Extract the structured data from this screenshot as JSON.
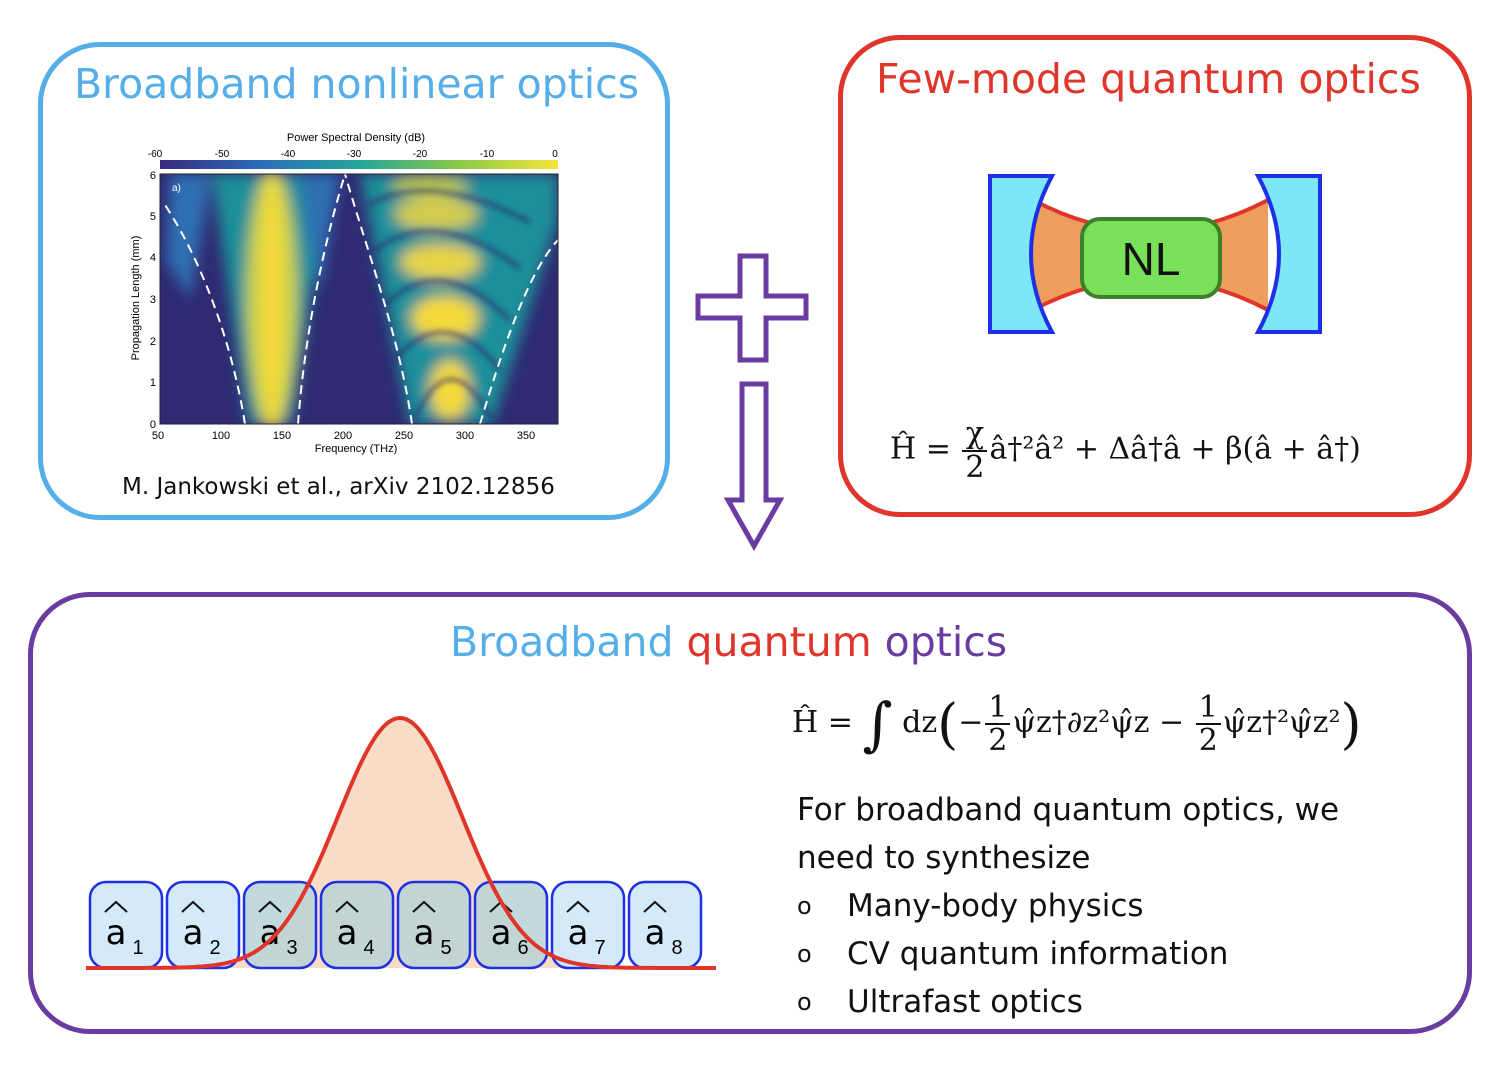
{
  "left_panel": {
    "title": "Broadband nonlinear optics",
    "citation": "M. Jankowski et al., arXiv 2102.12856",
    "figure": {
      "colorbar_label": "Power Spectral Density (dB)",
      "colorbar_ticks": [
        "-60",
        "-50",
        "-40",
        "-30",
        "-20",
        "-10",
        "0"
      ],
      "panel_tag": "a)",
      "xlabel": "Frequency (THz)",
      "ylabel": "Propagation Length (mm)",
      "xticks": [
        "50",
        "100",
        "150",
        "200",
        "250",
        "300",
        "350"
      ],
      "yticks": [
        "0",
        "1",
        "2",
        "3",
        "4",
        "5",
        "6"
      ]
    }
  },
  "right_panel": {
    "title": "Few-mode quantum optics",
    "element_label": "NL",
    "hamiltonian": {
      "lhs": "Ĥ = ",
      "frac_num": "χ",
      "frac_den": "2",
      "rhs": "â†²â² + Δâ†â + β(â + â†)"
    }
  },
  "bottom_panel": {
    "title_parts": [
      {
        "text": "Broadband ",
        "color": "#56aee8"
      },
      {
        "text": "quantum ",
        "color": "#e0352b"
      },
      {
        "text": "optics",
        "color": "#6a3ba0"
      }
    ],
    "hamiltonian": {
      "lhs": "Ĥ = ",
      "integral": "∫",
      "dz": " dz",
      "open": "(",
      "minus1": "−",
      "half1_num": "1",
      "half1_den": "2",
      "term1": "ψ̂z†∂z²ψ̂z",
      "minus2": " − ",
      "half2_num": "1",
      "half2_den": "2",
      "term2": "ψ̂z†²ψ̂z²",
      "close": ")"
    },
    "description": {
      "intro_line1": "For broadband quantum optics, we",
      "intro_line2": "need to synthesize",
      "items": [
        "Many-body physics",
        "CV quantum information",
        "Ultrafast optics"
      ]
    },
    "modes": [
      {
        "hat": "a",
        "sub": "1"
      },
      {
        "hat": "a",
        "sub": "2"
      },
      {
        "hat": "a",
        "sub": "3"
      },
      {
        "hat": "a",
        "sub": "4"
      },
      {
        "hat": "a",
        "sub": "5"
      },
      {
        "hat": "a",
        "sub": "6"
      },
      {
        "hat": "a",
        "sub": "7"
      },
      {
        "hat": "a",
        "sub": "8"
      }
    ]
  },
  "colors": {
    "blue": "#56aee8",
    "red": "#e0352b",
    "purple": "#6a3ba0",
    "mode_fill_light": "#cfe8fb",
    "mode_fill_dark": "#b8d3d6",
    "mode_border": "#1f2fe6",
    "mirror_fill": "#7de6f7",
    "cavity_fill": "#ee9e5c",
    "nl_fill": "#79e05a",
    "gaussian_fill": "#f8dcc6"
  },
  "icons": [
    "plus-icon",
    "down-arrow-icon",
    "cavity-mirror-icon"
  ]
}
